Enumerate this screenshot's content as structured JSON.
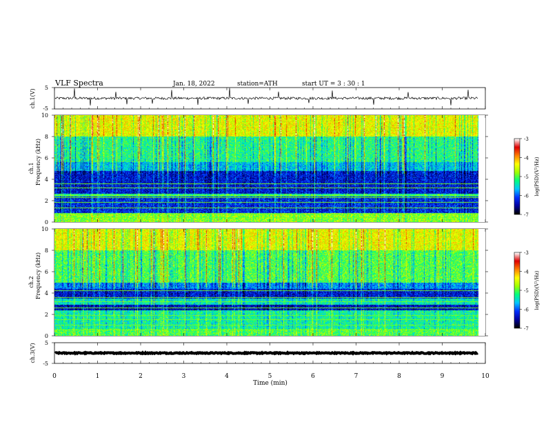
{
  "header": {
    "title": "VLF  Spectra",
    "date": "Jan. 18, 2022",
    "station": "station=ATH",
    "start_ut": "start  UT  =    3  : 30 : 1"
  },
  "chart_data": {
    "type": "heatmap",
    "x_axis": {
      "label": "Time  (min)",
      "range": [
        0,
        10
      ],
      "ticks": [
        "0",
        "1",
        "2",
        "3",
        "4",
        "5",
        "6",
        "7",
        "8",
        "9",
        "10"
      ],
      "data_end": 9.83
    },
    "waveform_panels": [
      {
        "id": "ch1",
        "ylabel": "ch.1(V)",
        "range": [
          -5,
          5
        ],
        "ticks": [
          "5",
          "-5"
        ],
        "baseline_v": 0.0,
        "noise_amplitude_v": 0.6,
        "spikes_v": [
          {
            "t": 0.47,
            "v": 4.6
          },
          {
            "t": 0.83,
            "v": -3.4
          },
          {
            "t": 1.43,
            "v": 3.0
          },
          {
            "t": 1.68,
            "v": -2.8
          },
          {
            "t": 2.27,
            "v": -2.5
          },
          {
            "t": 2.72,
            "v": 3.9
          },
          {
            "t": 3.33,
            "v": -3.1
          },
          {
            "t": 4.07,
            "v": 4.8
          },
          {
            "t": 4.49,
            "v": -2.6
          },
          {
            "t": 5.2,
            "v": 3.1
          },
          {
            "t": 5.91,
            "v": -2.2
          },
          {
            "t": 6.45,
            "v": 3.6
          },
          {
            "t": 7.4,
            "v": -3.0
          },
          {
            "t": 8.2,
            "v": 2.9
          },
          {
            "t": 9.2,
            "v": -3.3
          },
          {
            "t": 9.6,
            "v": 4.0
          }
        ]
      },
      {
        "id": "ch3",
        "ylabel": "ch.3(V)",
        "range": [
          -5,
          5
        ],
        "ticks": [
          "5",
          "-5"
        ],
        "baseline_v": 0.0,
        "noise_amplitude_v": 0.25,
        "spikes_v": []
      }
    ],
    "spectrogram_panels": [
      {
        "id": "ch1",
        "ylabel": "ch.1\nFrequency  (kHz)",
        "ylabel_lines": [
          "ch.1",
          "Frequency  (kHz)"
        ],
        "freq_range_khz": [
          0,
          10
        ],
        "yticks": [
          "0",
          "2",
          "4",
          "6",
          "8",
          "10"
        ],
        "bands_khz_logpsd": [
          {
            "from": 0.0,
            "to": 0.8,
            "level": -4.8
          },
          {
            "from": 0.8,
            "to": 2.4,
            "level": -6.2
          },
          {
            "from": 2.4,
            "to": 2.6,
            "level": -5.2
          },
          {
            "from": 2.6,
            "to": 4.8,
            "level": -6.3
          },
          {
            "from": 4.8,
            "to": 5.6,
            "level": -5.6
          },
          {
            "from": 5.6,
            "to": 8.0,
            "level": -5.2
          },
          {
            "from": 8.0,
            "to": 10.0,
            "level": -4.4
          }
        ],
        "tone_lines_khz": [
          0.4,
          0.7,
          1.3,
          1.8,
          2.3,
          2.5,
          3.2,
          3.6
        ],
        "colorbar": {
          "label": "log(PSD)(V²/Hz)",
          "range": [
            -7,
            -3
          ],
          "ticks": [
            "-3",
            "-4",
            "-5",
            "-6",
            "-7"
          ]
        }
      },
      {
        "id": "ch2",
        "ylabel": "ch.2\nFrequency  (kHz)",
        "ylabel_lines": [
          "ch.2",
          "Frequency  (kHz)"
        ],
        "freq_range_khz": [
          0,
          10
        ],
        "yticks": [
          "0",
          "2",
          "4",
          "6",
          "8",
          "10"
        ],
        "bands_khz_logpsd": [
          {
            "from": 0.0,
            "to": 0.6,
            "level": -5.0
          },
          {
            "from": 0.6,
            "to": 2.4,
            "level": -5.3
          },
          {
            "from": 2.4,
            "to": 2.9,
            "level": -6.4
          },
          {
            "from": 2.9,
            "to": 3.5,
            "level": -5.4
          },
          {
            "from": 3.5,
            "to": 4.4,
            "level": -6.3
          },
          {
            "from": 4.4,
            "to": 5.0,
            "level": -5.8
          },
          {
            "from": 5.0,
            "to": 8.0,
            "level": -5.0
          },
          {
            "from": 8.0,
            "to": 10.0,
            "level": -4.4
          }
        ],
        "tone_lines_khz": [
          0.5,
          1.0,
          1.5,
          1.9,
          2.6,
          3.2,
          3.6,
          4.2
        ],
        "colorbar": {
          "label": "log(PSD)(V²/Hz)",
          "range": [
            -7,
            -3
          ],
          "ticks": [
            "-3",
            "-4",
            "-5",
            "-6",
            "-7"
          ]
        }
      }
    ],
    "colormap": [
      "#000000",
      "#0000a0",
      "#0030ff",
      "#00c8ff",
      "#00ff80",
      "#a0ff00",
      "#ffff00",
      "#ff8000",
      "#e00000",
      "#ffffff"
    ]
  }
}
